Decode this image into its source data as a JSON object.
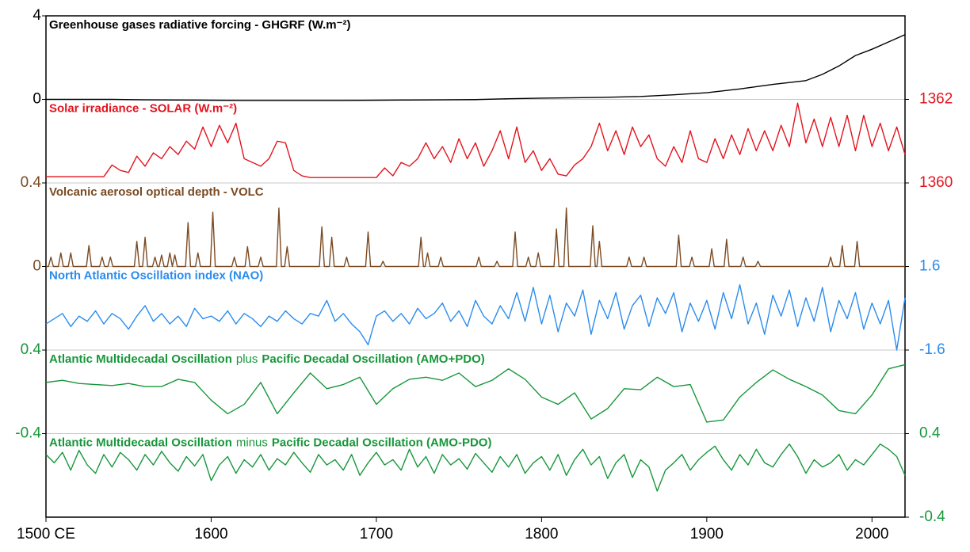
{
  "chart_data": [
    {
      "type": "line",
      "title": "Greenhouse gases radiative forcing - GHGRF (W.m⁻²)",
      "color": "#000000",
      "y_axis_side": "left",
      "x": [
        1500,
        1520,
        1540,
        1560,
        1580,
        1600,
        1620,
        1640,
        1660,
        1680,
        1700,
        1720,
        1740,
        1760,
        1780,
        1800,
        1820,
        1840,
        1860,
        1880,
        1900,
        1920,
        1940,
        1960,
        1970,
        1980,
        1990,
        2000,
        2010,
        2020
      ],
      "values": [
        0,
        0,
        0,
        -0.02,
        -0.03,
        -0.04,
        -0.05,
        -0.05,
        -0.05,
        -0.05,
        -0.04,
        -0.03,
        -0.02,
        -0.01,
        0.03,
        0.06,
        0.08,
        0.1,
        0.14,
        0.22,
        0.32,
        0.5,
        0.72,
        0.9,
        1.2,
        1.6,
        2.1,
        2.4,
        2.75,
        3.1
      ],
      "xlim": [
        1500,
        2020
      ],
      "ylim": [
        0,
        4
      ],
      "yticks": [
        0,
        4
      ]
    },
    {
      "type": "line",
      "title": "Solar irradiance - SOLAR (W.m⁻²)",
      "color": "#e3141e",
      "y_axis_side": "right",
      "x": [
        1500,
        1505,
        1510,
        1515,
        1520,
        1525,
        1530,
        1535,
        1540,
        1545,
        1550,
        1555,
        1560,
        1565,
        1570,
        1575,
        1580,
        1585,
        1590,
        1595,
        1600,
        1605,
        1610,
        1615,
        1620,
        1625,
        1630,
        1635,
        1640,
        1645,
        1650,
        1655,
        1660,
        1665,
        1670,
        1675,
        1680,
        1685,
        1690,
        1695,
        1700,
        1705,
        1710,
        1715,
        1720,
        1725,
        1730,
        1735,
        1740,
        1745,
        1750,
        1755,
        1760,
        1765,
        1770,
        1775,
        1780,
        1785,
        1790,
        1795,
        1800,
        1805,
        1810,
        1815,
        1820,
        1825,
        1830,
        1835,
        1840,
        1845,
        1850,
        1855,
        1860,
        1865,
        1870,
        1875,
        1880,
        1885,
        1890,
        1895,
        1900,
        1905,
        1910,
        1915,
        1920,
        1925,
        1930,
        1935,
        1940,
        1945,
        1950,
        1955,
        1960,
        1965,
        1970,
        1975,
        1980,
        1985,
        1990,
        1995,
        2000,
        2005,
        2010,
        2015,
        2020
      ],
      "values": [
        1360.15,
        1360.15,
        1360.15,
        1360.15,
        1360.15,
        1360.15,
        1360.15,
        1360.15,
        1360.43,
        1360.3,
        1360.25,
        1360.64,
        1360.4,
        1360.72,
        1360.58,
        1360.87,
        1360.68,
        1361.0,
        1360.81,
        1361.34,
        1360.87,
        1361.38,
        1360.96,
        1361.43,
        1360.58,
        1360.49,
        1360.4,
        1360.58,
        1361.0,
        1360.96,
        1360.3,
        1360.17,
        1360.13,
        1360.13,
        1360.13,
        1360.13,
        1360.13,
        1360.13,
        1360.13,
        1360.13,
        1360.13,
        1360.36,
        1360.17,
        1360.49,
        1360.4,
        1360.58,
        1360.96,
        1360.58,
        1360.87,
        1360.49,
        1361.06,
        1360.58,
        1360.96,
        1360.4,
        1360.77,
        1361.25,
        1360.58,
        1361.34,
        1360.49,
        1360.77,
        1360.3,
        1360.58,
        1360.21,
        1360.17,
        1360.43,
        1360.58,
        1360.87,
        1361.43,
        1360.77,
        1361.25,
        1360.68,
        1361.34,
        1360.87,
        1361.15,
        1360.58,
        1360.4,
        1360.87,
        1360.49,
        1361.25,
        1360.58,
        1360.49,
        1361.06,
        1360.58,
        1361.15,
        1360.68,
        1361.3,
        1360.77,
        1361.25,
        1360.77,
        1361.38,
        1360.87,
        1361.91,
        1360.96,
        1361.53,
        1360.87,
        1361.57,
        1360.87,
        1361.62,
        1360.77,
        1361.62,
        1360.87,
        1361.43,
        1360.77,
        1361.34,
        1360.68
      ],
      "xlim": [
        1500,
        2020
      ],
      "ylim": [
        1360,
        1362
      ],
      "yticks": [
        1360,
        1362
      ]
    },
    {
      "type": "line",
      "title": "Volcanic aerosol optical depth - VOLC",
      "color": "#7a4a22",
      "y_axis_side": "left",
      "x": [
        1500,
        1501.5,
        1503,
        1504.5,
        1507.5,
        1509,
        1510.5,
        1513.5,
        1515,
        1516.5,
        1524.5,
        1526,
        1527.5,
        1532.5,
        1534,
        1535.5,
        1537.5,
        1539,
        1540.5,
        1553.5,
        1555,
        1556.5,
        1558.5,
        1560,
        1561.5,
        1564.5,
        1566,
        1567.5,
        1568.5,
        1570,
        1571.5,
        1573.5,
        1575,
        1576.5,
        1576.5,
        1578,
        1579.5,
        1584.5,
        1586,
        1587.5,
        1590.5,
        1592,
        1593.5,
        1599.5,
        1601,
        1602.5,
        1612.5,
        1614,
        1615.5,
        1620.5,
        1622,
        1623.5,
        1628.5,
        1630,
        1631.5,
        1639.5,
        1641,
        1642.5,
        1644.5,
        1646,
        1647.5,
        1665.5,
        1667,
        1668.5,
        1671.5,
        1673,
        1674.5,
        1680.5,
        1682,
        1683.5,
        1693.5,
        1695,
        1696.5,
        1702.5,
        1704,
        1705.5,
        1725.5,
        1727,
        1728.5,
        1729.5,
        1731,
        1732.5,
        1737.5,
        1739,
        1740.5,
        1760.5,
        1762,
        1763.5,
        1771.5,
        1773,
        1774.5,
        1782.5,
        1784,
        1785.5,
        1790.5,
        1792,
        1793.5,
        1796.5,
        1798,
        1799.5,
        1807.5,
        1809,
        1810.5,
        1813.5,
        1815,
        1816.5,
        1829.5,
        1831,
        1832.5,
        1833.5,
        1835,
        1836.5,
        1851.5,
        1853,
        1854.5,
        1860.5,
        1862,
        1863.5,
        1881.5,
        1883,
        1884.5,
        1889.5,
        1891,
        1892.5,
        1901.5,
        1903,
        1904.5,
        1910.5,
        1912,
        1913.5,
        1920.5,
        1922,
        1923.5,
        1929.5,
        1931,
        1932.5,
        1973.5,
        1975,
        1976.5,
        1980.5,
        1982,
        1983.5,
        1989.5,
        1991,
        1992.5,
        2020
      ],
      "values": [
        0,
        0,
        0.045,
        0,
        0,
        0.065,
        0,
        0,
        0.065,
        0,
        0,
        0.1,
        0,
        0,
        0.045,
        0,
        0,
        0.045,
        0,
        0,
        0.12,
        0,
        0,
        0.14,
        0,
        0,
        0.045,
        0,
        0,
        0.055,
        0,
        0,
        0.065,
        0,
        0,
        0.055,
        0,
        0,
        0.21,
        0,
        0,
        0.065,
        0,
        0,
        0.26,
        0,
        0,
        0.045,
        0,
        0,
        0.095,
        0,
        0,
        0.045,
        0,
        0,
        0.28,
        0,
        0,
        0.095,
        0,
        0,
        0.19,
        0,
        0,
        0.14,
        0,
        0,
        0.045,
        0,
        0,
        0.165,
        0,
        0,
        0.025,
        0,
        0,
        0.14,
        0,
        0,
        0.065,
        0,
        0,
        0.045,
        0,
        0,
        0.045,
        0,
        0,
        0.025,
        0,
        0,
        0.165,
        0,
        0,
        0.045,
        0,
        0,
        0.065,
        0,
        0,
        0.18,
        0,
        0,
        0.28,
        0,
        0,
        0.195,
        0,
        0,
        0.12,
        0,
        0,
        0.045,
        0,
        0,
        0.045,
        0,
        0,
        0.15,
        0,
        0,
        0.045,
        0,
        0,
        0.085,
        0,
        0,
        0.13,
        0,
        0,
        0.045,
        0,
        0,
        0.025,
        0,
        0,
        0.045,
        0,
        0,
        0.1,
        0,
        0,
        0.12,
        0,
        0
      ],
      "xlim": [
        1500,
        2020
      ],
      "ylim": [
        0,
        0.4
      ],
      "yticks": [
        0,
        0.4
      ]
    },
    {
      "type": "line",
      "title": "North Atlantic Oscillation index (NAO)",
      "color": "#2b8cee",
      "y_axis_side": "right",
      "x": [
        1500,
        1505,
        1510,
        1515,
        1520,
        1525,
        1530,
        1535,
        1540,
        1545,
        1550,
        1555,
        1560,
        1565,
        1570,
        1575,
        1580,
        1585,
        1590,
        1595,
        1600,
        1605,
        1610,
        1615,
        1620,
        1625,
        1630,
        1635,
        1640,
        1645,
        1650,
        1655,
        1660,
        1665,
        1670,
        1675,
        1680,
        1685,
        1690,
        1695,
        1700,
        1705,
        1710,
        1715,
        1720,
        1725,
        1730,
        1735,
        1740,
        1745,
        1750,
        1755,
        1760,
        1765,
        1770,
        1775,
        1780,
        1785,
        1790,
        1795,
        1800,
        1805,
        1810,
        1815,
        1820,
        1825,
        1830,
        1835,
        1840,
        1845,
        1850,
        1855,
        1860,
        1865,
        1870,
        1875,
        1880,
        1885,
        1890,
        1895,
        1900,
        1905,
        1910,
        1915,
        1920,
        1925,
        1930,
        1935,
        1940,
        1945,
        1950,
        1955,
        1960,
        1965,
        1970,
        1975,
        1980,
        1985,
        1990,
        1995,
        2000,
        2005,
        2010,
        2015,
        2020
      ],
      "values": [
        -0.6,
        -0.4,
        -0.2,
        -0.7,
        -0.3,
        -0.5,
        -0.1,
        -0.6,
        -0.2,
        -0.4,
        -0.8,
        -0.3,
        0.1,
        -0.5,
        -0.2,
        -0.6,
        -0.3,
        -0.7,
        0.0,
        -0.4,
        -0.3,
        -0.5,
        -0.1,
        -0.6,
        -0.2,
        -0.4,
        -0.7,
        -0.3,
        -0.5,
        -0.1,
        -0.4,
        -0.6,
        -0.2,
        -0.3,
        0.3,
        -0.5,
        -0.2,
        -0.6,
        -0.9,
        -1.4,
        -0.3,
        -0.1,
        -0.5,
        -0.2,
        -0.6,
        0.0,
        -0.4,
        -0.2,
        0.2,
        -0.5,
        -0.1,
        -0.7,
        0.3,
        -0.3,
        -0.6,
        0.1,
        -0.4,
        0.6,
        -0.5,
        0.8,
        -0.6,
        0.5,
        -0.9,
        0.2,
        -0.3,
        0.7,
        -1.0,
        0.3,
        -0.4,
        0.6,
        -0.8,
        0.1,
        0.5,
        -0.7,
        0.4,
        -0.2,
        0.6,
        -0.9,
        0.2,
        -0.5,
        0.3,
        -0.8,
        0.6,
        -0.4,
        0.9,
        -0.6,
        0.2,
        -1.0,
        0.5,
        -0.3,
        0.7,
        -0.7,
        0.4,
        -0.5,
        0.8,
        -0.9,
        0.3,
        -0.4,
        0.6,
        -0.8,
        0.2,
        -0.6,
        0.3,
        -1.6,
        0.4
      ],
      "xlim": [
        1500,
        2020
      ],
      "ylim": [
        -1.6,
        1.6
      ],
      "yticks": [
        -1.6,
        1.6
      ]
    },
    {
      "type": "line",
      "title": [
        "Atlantic Multidecadal Oscillation",
        "plus",
        "Pacific Decadal Oscillation (AMO+PDO)"
      ],
      "color": "#17973a",
      "y_axis_side": "left",
      "x": [
        1500,
        1510,
        1520,
        1530,
        1540,
        1550,
        1560,
        1570,
        1580,
        1590,
        1600,
        1610,
        1620,
        1630,
        1640,
        1650,
        1660,
        1670,
        1680,
        1690,
        1700,
        1710,
        1720,
        1730,
        1740,
        1750,
        1760,
        1770,
        1780,
        1790,
        1800,
        1810,
        1820,
        1830,
        1840,
        1850,
        1860,
        1870,
        1880,
        1890,
        1900,
        1910,
        1920,
        1930,
        1940,
        1950,
        1960,
        1970,
        1980,
        1990,
        2000,
        2010,
        2020
      ],
      "values": [
        0.09,
        0.11,
        0.08,
        0.07,
        0.06,
        0.08,
        0.05,
        0.05,
        0.12,
        0.09,
        -0.08,
        -0.21,
        -0.12,
        0.09,
        -0.21,
        -0.01,
        0.18,
        0.03,
        0.07,
        0.14,
        -0.12,
        0.03,
        0.12,
        0.14,
        0.11,
        0.18,
        0.05,
        0.11,
        0.22,
        0.12,
        -0.05,
        -0.12,
        -0.01,
        -0.26,
        -0.16,
        0.03,
        0.02,
        0.14,
        0.05,
        0.07,
        -0.29,
        -0.27,
        -0.05,
        0.09,
        0.21,
        0.12,
        0.05,
        -0.03,
        -0.18,
        -0.21,
        -0.03,
        0.22,
        0.26
      ],
      "xlim": [
        1500,
        2020
      ],
      "ylim": [
        -0.4,
        0.4
      ],
      "yticks": [
        -0.4,
        0.4
      ]
    },
    {
      "type": "line",
      "title": [
        "Atlantic Multidecadal Oscillation",
        "minus",
        "Pacific Decadal Oscillation (AMO-PDO)"
      ],
      "color": "#17973a",
      "y_axis_side": "right",
      "x": [
        1500,
        1505,
        1510,
        1515,
        1520,
        1525,
        1530,
        1535,
        1540,
        1545,
        1550,
        1555,
        1560,
        1565,
        1570,
        1575,
        1580,
        1585,
        1590,
        1595,
        1600,
        1605,
        1610,
        1615,
        1620,
        1625,
        1630,
        1635,
        1640,
        1645,
        1650,
        1655,
        1660,
        1665,
        1670,
        1675,
        1680,
        1685,
        1690,
        1695,
        1700,
        1705,
        1710,
        1715,
        1720,
        1725,
        1730,
        1735,
        1740,
        1745,
        1750,
        1755,
        1760,
        1765,
        1770,
        1775,
        1780,
        1785,
        1790,
        1795,
        1800,
        1805,
        1810,
        1815,
        1820,
        1825,
        1830,
        1835,
        1840,
        1845,
        1850,
        1855,
        1860,
        1865,
        1870,
        1875,
        1880,
        1885,
        1890,
        1895,
        1900,
        1905,
        1910,
        1915,
        1920,
        1925,
        1930,
        1935,
        1940,
        1945,
        1950,
        1955,
        1960,
        1965,
        1970,
        1975,
        1980,
        1985,
        1990,
        1995,
        2000,
        2005,
        2010,
        2015,
        2020
      ],
      "values": [
        0.2,
        0.12,
        0.22,
        0.05,
        0.24,
        0.1,
        0.02,
        0.2,
        0.08,
        0.22,
        0.15,
        0.05,
        0.2,
        0.1,
        0.23,
        0.12,
        0.04,
        0.18,
        0.09,
        0.2,
        -0.05,
        0.1,
        0.18,
        0.02,
        0.15,
        0.08,
        0.2,
        0.05,
        0.16,
        0.1,
        0.22,
        0.12,
        0.03,
        0.2,
        0.1,
        0.15,
        0.05,
        0.2,
        0.0,
        0.12,
        0.22,
        0.1,
        0.15,
        0.05,
        0.25,
        0.08,
        0.18,
        0.02,
        0.2,
        0.1,
        0.16,
        0.06,
        0.21,
        0.12,
        0.03,
        0.18,
        0.08,
        0.2,
        0.02,
        0.12,
        0.18,
        0.05,
        0.2,
        0.0,
        0.15,
        0.25,
        0.1,
        0.18,
        -0.03,
        0.12,
        0.2,
        -0.02,
        0.15,
        0.08,
        -0.15,
        0.05,
        0.12,
        0.2,
        0.05,
        0.15,
        0.22,
        0.28,
        0.15,
        0.05,
        0.2,
        0.1,
        0.25,
        0.12,
        0.08,
        0.2,
        0.3,
        0.18,
        0.02,
        0.15,
        0.08,
        0.12,
        0.2,
        0.05,
        0.15,
        0.1,
        0.2,
        0.3,
        0.25,
        0.18,
        0.0
      ],
      "xlim": [
        1500,
        2020
      ],
      "ylim": [
        -0.4,
        0.4
      ],
      "yticks": [
        -0.4,
        0.4
      ],
      "xticks": [
        {
          "value": 1500,
          "label": "1500 CE"
        },
        1600,
        1700,
        1800,
        1900,
        2000
      ]
    }
  ]
}
